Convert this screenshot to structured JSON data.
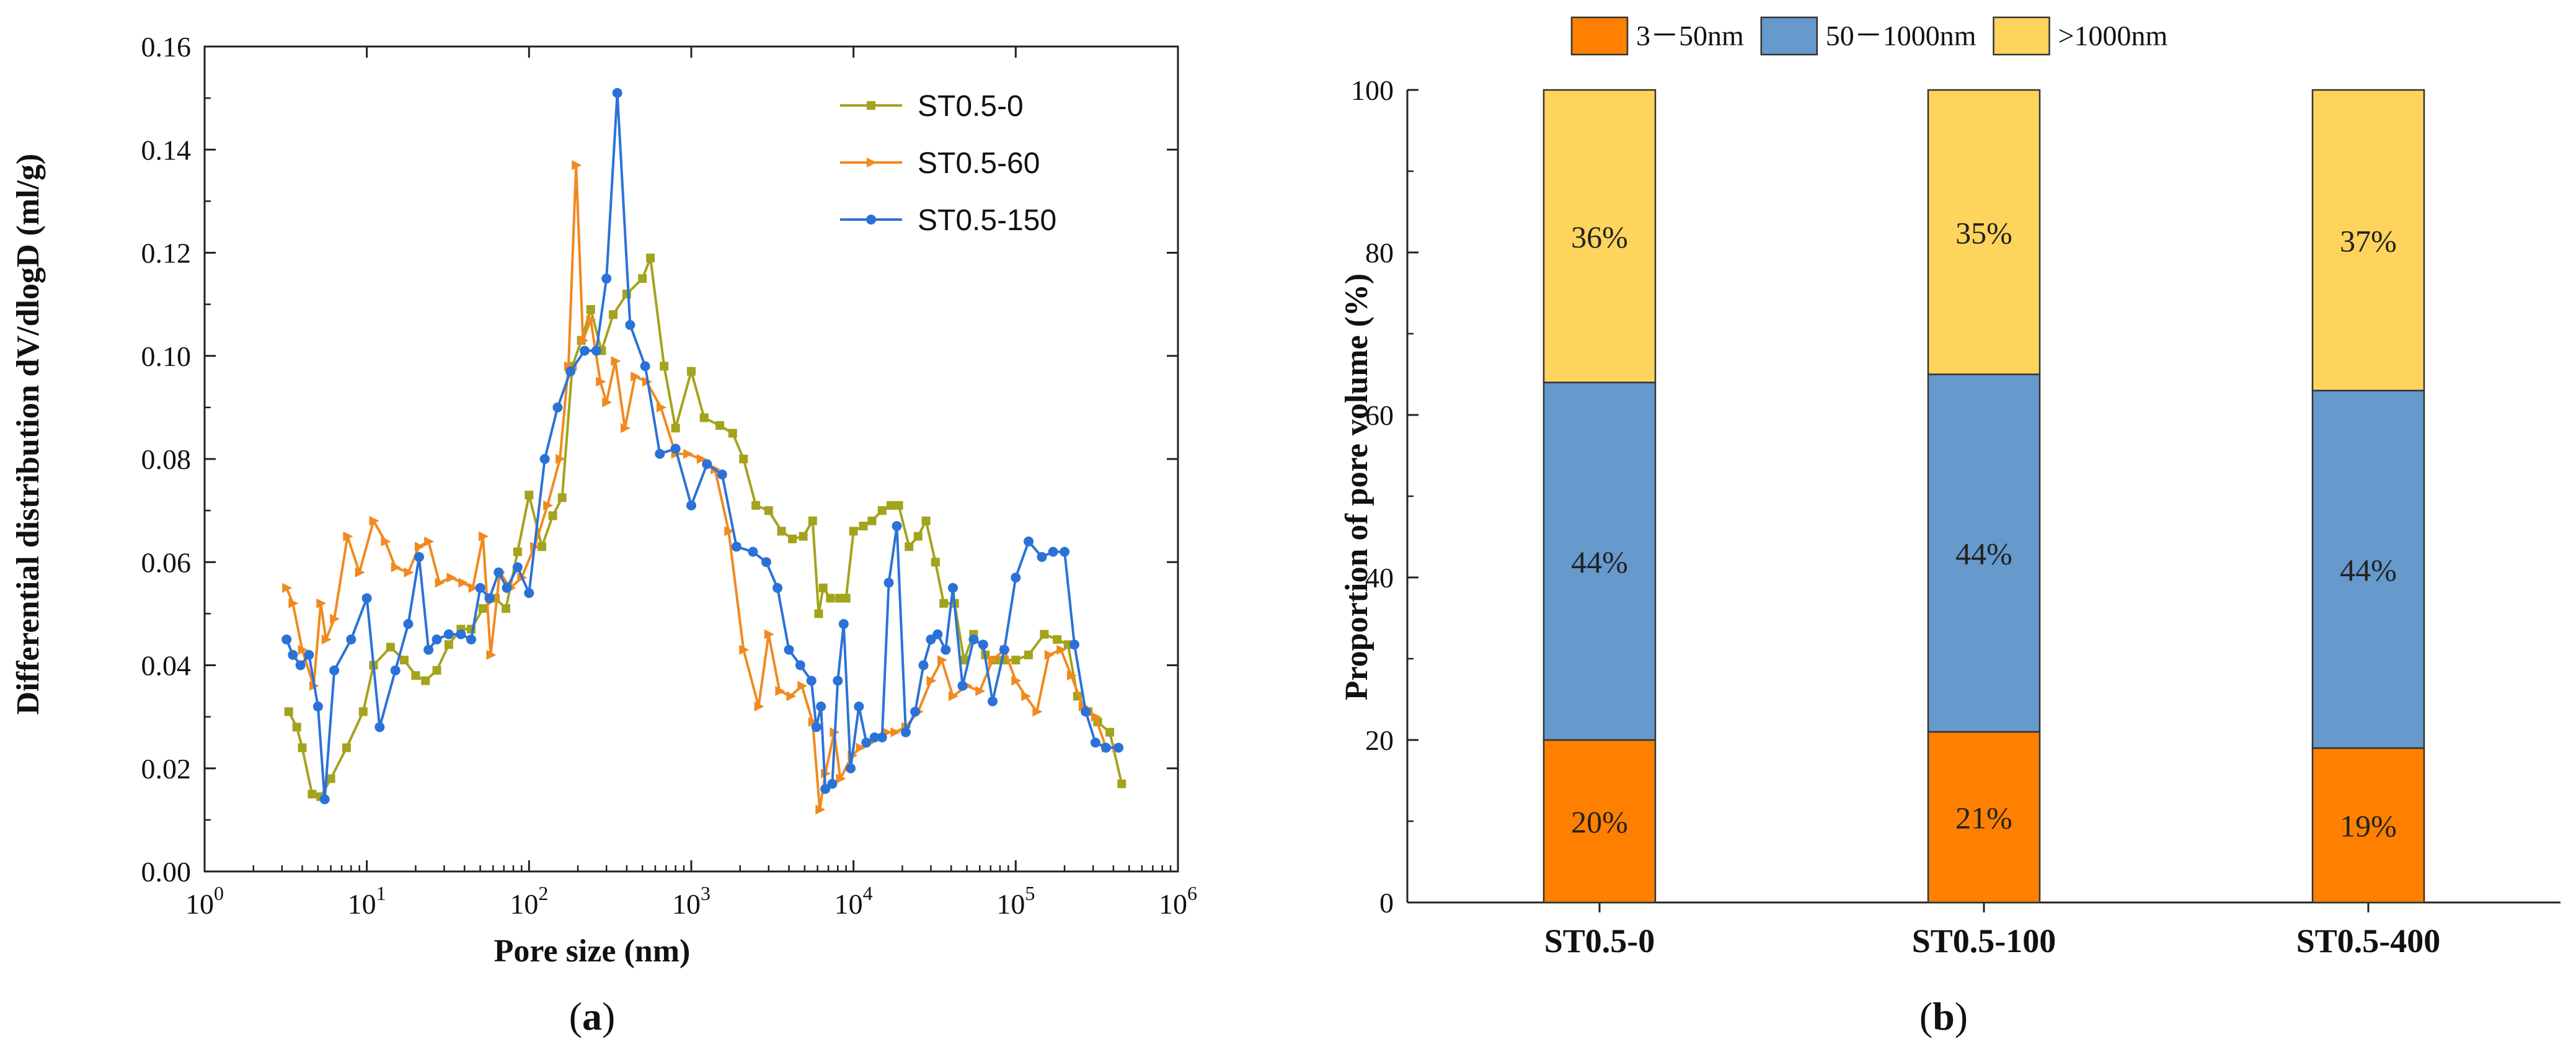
{
  "chart_data": [
    {
      "type": "line",
      "panel_label": "(a)",
      "panel_letter": "a",
      "xlabel": "Pore size (nm)",
      "ylabel": "Differential distribution dV/dlogD (ml/g)",
      "x_scale": "log",
      "xlim": [
        1,
        1000000
      ],
      "ylim": [
        0,
        0.16
      ],
      "x_tick_labels": [
        {
          "base": "10",
          "exp": "0",
          "value": 1
        },
        {
          "base": "10",
          "exp": "1",
          "value": 10
        },
        {
          "base": "10",
          "exp": "2",
          "value": 100
        },
        {
          "base": "10",
          "exp": "3",
          "value": 1000
        },
        {
          "base": "10",
          "exp": "4",
          "value": 10000
        },
        {
          "base": "10",
          "exp": "5",
          "value": 100000
        },
        {
          "base": "10",
          "exp": "6",
          "value": 1000000
        }
      ],
      "y_ticks": [
        "0.00",
        "0.02",
        "0.04",
        "0.06",
        "0.08",
        "0.10",
        "0.12",
        "0.14",
        "0.16"
      ],
      "legend_position": "top-right",
      "series": [
        {
          "name": "ST0.5-0",
          "color": "#a3a31c",
          "marker": "square",
          "points": [
            [
              3.3,
              0.031
            ],
            [
              3.7,
              0.028
            ],
            [
              4.0,
              0.024
            ],
            [
              4.6,
              0.015
            ],
            [
              5.2,
              0.0145
            ],
            [
              6.0,
              0.018
            ],
            [
              7.5,
              0.024
            ],
            [
              9.5,
              0.031
            ],
            [
              11,
              0.04
            ],
            [
              14,
              0.0435
            ],
            [
              17,
              0.041
            ],
            [
              20,
              0.038
            ],
            [
              23,
              0.037
            ],
            [
              27,
              0.039
            ],
            [
              32,
              0.044
            ],
            [
              38,
              0.047
            ],
            [
              44,
              0.047
            ],
            [
              52,
              0.051
            ],
            [
              62,
              0.053
            ],
            [
              72,
              0.051
            ],
            [
              85,
              0.062
            ],
            [
              100,
              0.073
            ],
            [
              120,
              0.063
            ],
            [
              140,
              0.069
            ],
            [
              160,
              0.0725
            ],
            [
              185,
              0.098
            ],
            [
              210,
              0.103
            ],
            [
              240,
              0.109
            ],
            [
              280,
              0.101
            ],
            [
              330,
              0.108
            ],
            [
              400,
              0.112
            ],
            [
              500,
              0.115
            ],
            [
              560,
              0.119
            ],
            [
              680,
              0.098
            ],
            [
              800,
              0.086
            ],
            [
              1000,
              0.097
            ],
            [
              1200,
              0.088
            ],
            [
              1500,
              0.0865
            ],
            [
              1800,
              0.085
            ],
            [
              2100,
              0.08
            ],
            [
              2500,
              0.071
            ],
            [
              3000,
              0.07
            ],
            [
              3600,
              0.066
            ],
            [
              4200,
              0.0645
            ],
            [
              4900,
              0.065
            ],
            [
              5600,
              0.068
            ],
            [
              6100,
              0.05
            ],
            [
              6500,
              0.055
            ],
            [
              7200,
              0.053
            ],
            [
              8200,
              0.053
            ],
            [
              9000,
              0.053
            ],
            [
              10000,
              0.066
            ],
            [
              11500,
              0.067
            ],
            [
              13000,
              0.068
            ],
            [
              15000,
              0.07
            ],
            [
              17000,
              0.071
            ],
            [
              19000,
              0.071
            ],
            [
              22000,
              0.063
            ],
            [
              25000,
              0.065
            ],
            [
              28000,
              0.068
            ],
            [
              32000,
              0.06
            ],
            [
              36000,
              0.052
            ],
            [
              42000,
              0.052
            ],
            [
              48000,
              0.041
            ],
            [
              55000,
              0.046
            ],
            [
              65000,
              0.042
            ],
            [
              75000,
              0.041
            ],
            [
              85000,
              0.041
            ],
            [
              100000,
              0.041
            ],
            [
              120000,
              0.042
            ],
            [
              150000,
              0.046
            ],
            [
              180000,
              0.045
            ],
            [
              210000,
              0.044
            ],
            [
              240000,
              0.034
            ],
            [
              280000,
              0.031
            ],
            [
              320000,
              0.029
            ],
            [
              380000,
              0.027
            ],
            [
              450000,
              0.017
            ]
          ]
        },
        {
          "name": "ST0.5-60",
          "color": "#f08a1e",
          "marker": "arrow",
          "points": [
            [
              3.2,
              0.055
            ],
            [
              3.5,
              0.052
            ],
            [
              4.0,
              0.043
            ],
            [
              4.7,
              0.036
            ],
            [
              5.2,
              0.052
            ],
            [
              5.6,
              0.045
            ],
            [
              6.3,
              0.049
            ],
            [
              7.6,
              0.065
            ],
            [
              9.0,
              0.058
            ],
            [
              11,
              0.068
            ],
            [
              13,
              0.064
            ],
            [
              15,
              0.059
            ],
            [
              18,
              0.058
            ],
            [
              21,
              0.063
            ],
            [
              24,
              0.064
            ],
            [
              28,
              0.056
            ],
            [
              33,
              0.057
            ],
            [
              39,
              0.056
            ],
            [
              45,
              0.055
            ],
            [
              52,
              0.065
            ],
            [
              58,
              0.042
            ],
            [
              66,
              0.058
            ],
            [
              77,
              0.055
            ],
            [
              90,
              0.057
            ],
            [
              108,
              0.063
            ],
            [
              130,
              0.071
            ],
            [
              155,
              0.08
            ],
            [
              175,
              0.098
            ],
            [
              195,
              0.137
            ],
            [
              215,
              0.103
            ],
            [
              240,
              0.107
            ],
            [
              275,
              0.095
            ],
            [
              300,
              0.091
            ],
            [
              340,
              0.099
            ],
            [
              390,
              0.086
            ],
            [
              450,
              0.096
            ],
            [
              530,
              0.095
            ],
            [
              650,
              0.09
            ],
            [
              800,
              0.081
            ],
            [
              950,
              0.081
            ],
            [
              1150,
              0.08
            ],
            [
              1400,
              0.078
            ],
            [
              1700,
              0.066
            ],
            [
              2100,
              0.043
            ],
            [
              2600,
              0.032
            ],
            [
              3000,
              0.046
            ],
            [
              3500,
              0.035
            ],
            [
              4100,
              0.034
            ],
            [
              4800,
              0.036
            ],
            [
              5600,
              0.029
            ],
            [
              6200,
              0.012
            ],
            [
              6700,
              0.019
            ],
            [
              7600,
              0.027
            ],
            [
              8300,
              0.018
            ],
            [
              9800,
              0.0225
            ],
            [
              11000,
              0.024
            ],
            [
              12500,
              0.025
            ],
            [
              14000,
              0.026
            ],
            [
              16000,
              0.027
            ],
            [
              18000,
              0.027
            ],
            [
              21000,
              0.028
            ],
            [
              25000,
              0.031
            ],
            [
              30000,
              0.037
            ],
            [
              35000,
              0.041
            ],
            [
              41000,
              0.034
            ],
            [
              50000,
              0.036
            ],
            [
              60000,
              0.035
            ],
            [
              72000,
              0.041
            ],
            [
              85000,
              0.043
            ],
            [
              100000,
              0.037
            ],
            [
              115000,
              0.034
            ],
            [
              135000,
              0.031
            ],
            [
              160000,
              0.042
            ],
            [
              190000,
              0.043
            ],
            [
              220000,
              0.038
            ],
            [
              260000,
              0.032
            ],
            [
              310000,
              0.03
            ],
            [
              360000,
              0.024
            ],
            [
              420000,
              0.024
            ]
          ]
        },
        {
          "name": "ST0.5-150",
          "color": "#2b72d8",
          "marker": "circle",
          "points": [
            [
              3.2,
              0.045
            ],
            [
              3.5,
              0.042
            ],
            [
              3.9,
              0.04
            ],
            [
              4.4,
              0.042
            ],
            [
              5.0,
              0.032
            ],
            [
              5.5,
              0.014
            ],
            [
              6.3,
              0.039
            ],
            [
              8,
              0.045
            ],
            [
              10,
              0.053
            ],
            [
              12,
              0.028
            ],
            [
              15,
              0.039
            ],
            [
              18,
              0.048
            ],
            [
              21,
              0.061
            ],
            [
              24,
              0.043
            ],
            [
              27,
              0.045
            ],
            [
              32,
              0.046
            ],
            [
              38,
              0.046
            ],
            [
              44,
              0.045
            ],
            [
              50,
              0.055
            ],
            [
              57,
              0.053
            ],
            [
              65,
              0.058
            ],
            [
              73,
              0.055
            ],
            [
              85,
              0.059
            ],
            [
              100,
              0.054
            ],
            [
              125,
              0.08
            ],
            [
              150,
              0.09
            ],
            [
              180,
              0.097
            ],
            [
              220,
              0.101
            ],
            [
              260,
              0.101
            ],
            [
              300,
              0.115
            ],
            [
              350,
              0.151
            ],
            [
              420,
              0.106
            ],
            [
              520,
              0.098
            ],
            [
              640,
              0.081
            ],
            [
              800,
              0.082
            ],
            [
              1000,
              0.071
            ],
            [
              1250,
              0.079
            ],
            [
              1550,
              0.077
            ],
            [
              1900,
              0.063
            ],
            [
              2400,
              0.062
            ],
            [
              2900,
              0.06
            ],
            [
              3400,
              0.055
            ],
            [
              4000,
              0.043
            ],
            [
              4700,
              0.04
            ],
            [
              5500,
              0.037
            ],
            [
              5900,
              0.028
            ],
            [
              6300,
              0.032
            ],
            [
              6700,
              0.016
            ],
            [
              7400,
              0.017
            ],
            [
              8000,
              0.037
            ],
            [
              8700,
              0.048
            ],
            [
              9600,
              0.02
            ],
            [
              10800,
              0.032
            ],
            [
              12000,
              0.025
            ],
            [
              13500,
              0.026
            ],
            [
              15000,
              0.026
            ],
            [
              16500,
              0.056
            ],
            [
              18500,
              0.067
            ],
            [
              21000,
              0.027
            ],
            [
              24000,
              0.031
            ],
            [
              27000,
              0.04
            ],
            [
              30000,
              0.045
            ],
            [
              33000,
              0.046
            ],
            [
              37000,
              0.043
            ],
            [
              41000,
              0.055
            ],
            [
              47000,
              0.036
            ],
            [
              55000,
              0.045
            ],
            [
              63000,
              0.044
            ],
            [
              72000,
              0.033
            ],
            [
              85000,
              0.043
            ],
            [
              100000,
              0.057
            ],
            [
              120000,
              0.064
            ],
            [
              145000,
              0.061
            ],
            [
              170000,
              0.062
            ],
            [
              200000,
              0.062
            ],
            [
              230000,
              0.044
            ],
            [
              270000,
              0.031
            ],
            [
              310000,
              0.025
            ],
            [
              360000,
              0.024
            ],
            [
              430000,
              0.024
            ]
          ]
        }
      ]
    },
    {
      "type": "bar",
      "stacked": true,
      "panel_label": "(b)",
      "panel_letter": "b",
      "ylabel": "Proportion of pore volume (%)",
      "ylim": [
        0,
        100
      ],
      "y_ticks": [
        "0",
        "20",
        "40",
        "60",
        "80",
        "100"
      ],
      "categories": [
        "ST0.5-0",
        "ST0.5-100",
        "ST0.5-400"
      ],
      "legend_position": "top",
      "series": [
        {
          "name": "3－50nm",
          "color": "#ff7f00",
          "values": [
            20,
            21,
            19
          ],
          "labels": [
            "20%",
            "21%",
            "19%"
          ]
        },
        {
          "name": "50－1000nm",
          "color": "#6699cc",
          "values": [
            44,
            44,
            44
          ],
          "labels": [
            "44%",
            "44%",
            "44%"
          ]
        },
        {
          "name": ">1000nm",
          "color": "#ffd45c",
          "values": [
            36,
            35,
            37
          ],
          "labels": [
            "36%",
            "35%",
            "37%"
          ]
        }
      ]
    }
  ]
}
